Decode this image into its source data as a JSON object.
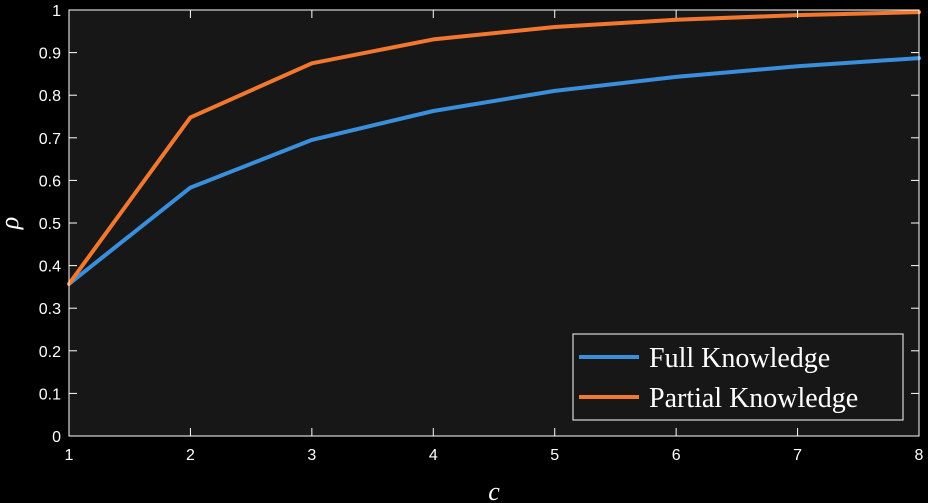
{
  "chart_data": {
    "type": "line",
    "xlabel": "c",
    "ylabel": "ρ",
    "xlim": [
      1,
      8
    ],
    "ylim": [
      0,
      1
    ],
    "x_ticks": [
      "1",
      "2",
      "3",
      "4",
      "5",
      "6",
      "7",
      "8"
    ],
    "y_ticks": [
      "0",
      "0.1",
      "0.2",
      "0.3",
      "0.4",
      "0.5",
      "0.6",
      "0.7",
      "0.8",
      "0.9",
      "1"
    ],
    "grid": false,
    "legend_position": "bottom-right",
    "x": [
      1,
      2,
      3,
      4,
      5,
      6,
      7,
      8
    ],
    "series": [
      {
        "name": "Full Knowledge",
        "color": "#3a8fdc",
        "values": [
          0.357,
          0.583,
          0.695,
          0.763,
          0.81,
          0.843,
          0.868,
          0.887
        ]
      },
      {
        "name": "Partial Knowledge",
        "color": "#f2772f",
        "values": [
          0.357,
          0.748,
          0.875,
          0.931,
          0.96,
          0.977,
          0.988,
          0.995
        ]
      }
    ]
  }
}
